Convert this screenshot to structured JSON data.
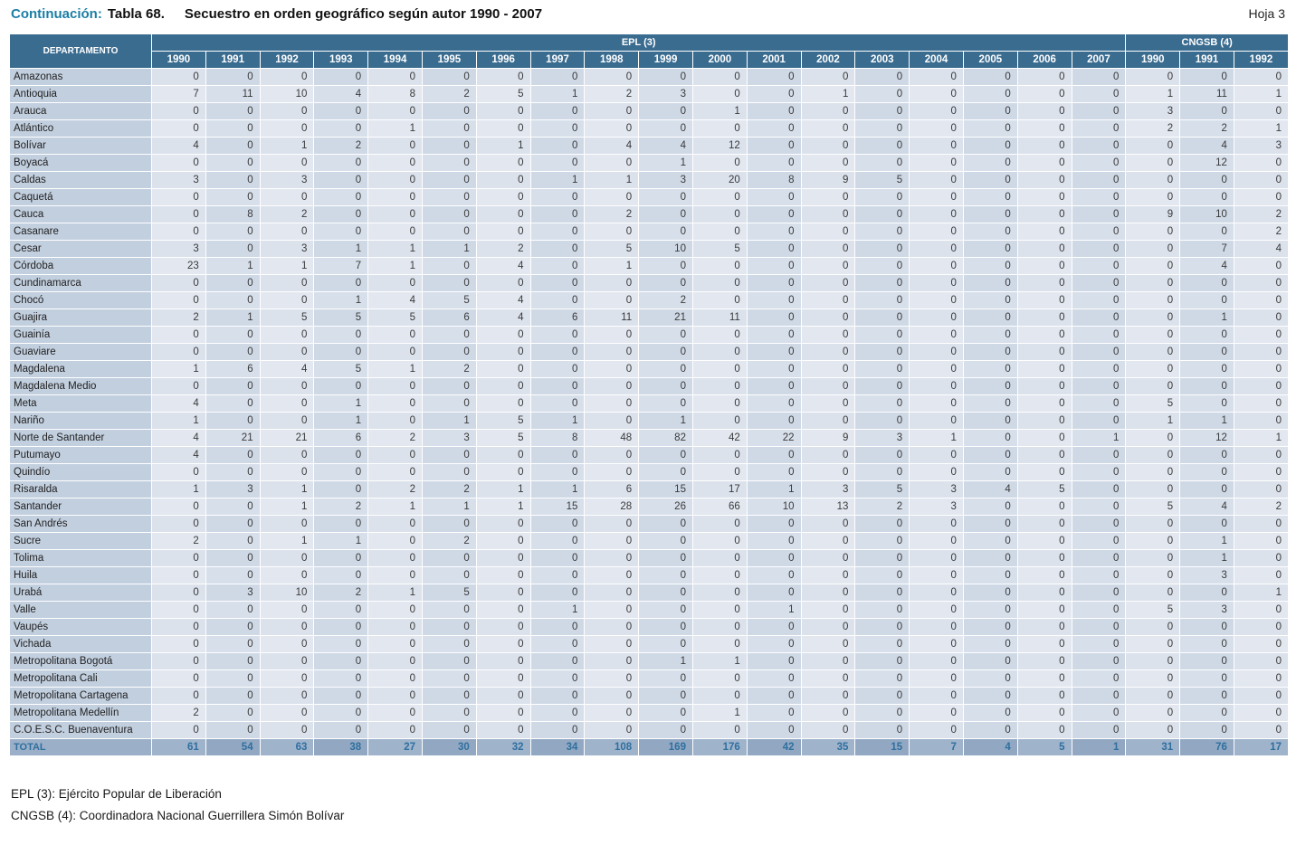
{
  "header": {
    "continuation_label": "Continuación:",
    "table_label": "Tabla 68.",
    "title": "Secuestro en orden geográfico según autor 1990 - 2007",
    "sheet_label": "Hoja 3"
  },
  "table": {
    "dept_header": "DEPARTAMENTO",
    "groups": [
      {
        "label": "EPL (3)",
        "years": [
          "1990",
          "1991",
          "1992",
          "1993",
          "1994",
          "1995",
          "1996",
          "1997",
          "1998",
          "1999",
          "2000",
          "2001",
          "2002",
          "2003",
          "2004",
          "2005",
          "2006",
          "2007"
        ]
      },
      {
        "label": "CNGSB (4)",
        "years": [
          "1990",
          "1991",
          "1992"
        ]
      }
    ],
    "rows": [
      {
        "dept": "Amazonas",
        "values": [
          0,
          0,
          0,
          0,
          0,
          0,
          0,
          0,
          0,
          0,
          0,
          0,
          0,
          0,
          0,
          0,
          0,
          0,
          0,
          0,
          0
        ]
      },
      {
        "dept": "Antioquia",
        "values": [
          7,
          11,
          10,
          4,
          8,
          2,
          5,
          1,
          2,
          3,
          0,
          0,
          1,
          0,
          0,
          0,
          0,
          0,
          1,
          11,
          1
        ]
      },
      {
        "dept": "Arauca",
        "values": [
          0,
          0,
          0,
          0,
          0,
          0,
          0,
          0,
          0,
          0,
          1,
          0,
          0,
          0,
          0,
          0,
          0,
          0,
          3,
          0,
          0
        ]
      },
      {
        "dept": "Atlántico",
        "values": [
          0,
          0,
          0,
          0,
          1,
          0,
          0,
          0,
          0,
          0,
          0,
          0,
          0,
          0,
          0,
          0,
          0,
          0,
          2,
          2,
          1
        ]
      },
      {
        "dept": "Bolívar",
        "values": [
          4,
          0,
          1,
          2,
          0,
          0,
          1,
          0,
          4,
          4,
          12,
          0,
          0,
          0,
          0,
          0,
          0,
          0,
          0,
          4,
          3
        ]
      },
      {
        "dept": "Boyacá",
        "values": [
          0,
          0,
          0,
          0,
          0,
          0,
          0,
          0,
          0,
          1,
          0,
          0,
          0,
          0,
          0,
          0,
          0,
          0,
          0,
          12,
          0
        ]
      },
      {
        "dept": "Caldas",
        "values": [
          3,
          0,
          3,
          0,
          0,
          0,
          0,
          1,
          1,
          3,
          20,
          8,
          9,
          5,
          0,
          0,
          0,
          0,
          0,
          0,
          0
        ]
      },
      {
        "dept": "Caquetá",
        "values": [
          0,
          0,
          0,
          0,
          0,
          0,
          0,
          0,
          0,
          0,
          0,
          0,
          0,
          0,
          0,
          0,
          0,
          0,
          0,
          0,
          0
        ]
      },
      {
        "dept": "Cauca",
        "values": [
          0,
          8,
          2,
          0,
          0,
          0,
          0,
          0,
          2,
          0,
          0,
          0,
          0,
          0,
          0,
          0,
          0,
          0,
          9,
          10,
          2
        ]
      },
      {
        "dept": "Casanare",
        "values": [
          0,
          0,
          0,
          0,
          0,
          0,
          0,
          0,
          0,
          0,
          0,
          0,
          0,
          0,
          0,
          0,
          0,
          0,
          0,
          0,
          2
        ]
      },
      {
        "dept": "Cesar",
        "values": [
          3,
          0,
          3,
          1,
          1,
          1,
          2,
          0,
          5,
          10,
          5,
          0,
          0,
          0,
          0,
          0,
          0,
          0,
          0,
          7,
          4
        ]
      },
      {
        "dept": "Córdoba",
        "values": [
          23,
          1,
          1,
          7,
          1,
          0,
          4,
          0,
          1,
          0,
          0,
          0,
          0,
          0,
          0,
          0,
          0,
          0,
          0,
          4,
          0
        ]
      },
      {
        "dept": "Cundinamarca",
        "values": [
          0,
          0,
          0,
          0,
          0,
          0,
          0,
          0,
          0,
          0,
          0,
          0,
          0,
          0,
          0,
          0,
          0,
          0,
          0,
          0,
          0
        ]
      },
      {
        "dept": "Chocó",
        "values": [
          0,
          0,
          0,
          1,
          4,
          5,
          4,
          0,
          0,
          2,
          0,
          0,
          0,
          0,
          0,
          0,
          0,
          0,
          0,
          0,
          0
        ]
      },
      {
        "dept": "Guajira",
        "values": [
          2,
          1,
          5,
          5,
          5,
          6,
          4,
          6,
          11,
          21,
          11,
          0,
          0,
          0,
          0,
          0,
          0,
          0,
          0,
          1,
          0
        ]
      },
      {
        "dept": "Guainía",
        "values": [
          0,
          0,
          0,
          0,
          0,
          0,
          0,
          0,
          0,
          0,
          0,
          0,
          0,
          0,
          0,
          0,
          0,
          0,
          0,
          0,
          0
        ]
      },
      {
        "dept": "Guaviare",
        "values": [
          0,
          0,
          0,
          0,
          0,
          0,
          0,
          0,
          0,
          0,
          0,
          0,
          0,
          0,
          0,
          0,
          0,
          0,
          0,
          0,
          0
        ]
      },
      {
        "dept": "Magdalena",
        "values": [
          1,
          6,
          4,
          5,
          1,
          2,
          0,
          0,
          0,
          0,
          0,
          0,
          0,
          0,
          0,
          0,
          0,
          0,
          0,
          0,
          0
        ]
      },
      {
        "dept": "Magdalena Medio",
        "values": [
          0,
          0,
          0,
          0,
          0,
          0,
          0,
          0,
          0,
          0,
          0,
          0,
          0,
          0,
          0,
          0,
          0,
          0,
          0,
          0,
          0
        ]
      },
      {
        "dept": "Meta",
        "values": [
          4,
          0,
          0,
          1,
          0,
          0,
          0,
          0,
          0,
          0,
          0,
          0,
          0,
          0,
          0,
          0,
          0,
          0,
          5,
          0,
          0
        ]
      },
      {
        "dept": "Nariño",
        "values": [
          1,
          0,
          0,
          1,
          0,
          1,
          5,
          1,
          0,
          1,
          0,
          0,
          0,
          0,
          0,
          0,
          0,
          0,
          1,
          1,
          0
        ]
      },
      {
        "dept": "Norte de Santander",
        "values": [
          4,
          21,
          21,
          6,
          2,
          3,
          5,
          8,
          48,
          82,
          42,
          22,
          9,
          3,
          1,
          0,
          0,
          1,
          0,
          12,
          1
        ]
      },
      {
        "dept": "Putumayo",
        "values": [
          4,
          0,
          0,
          0,
          0,
          0,
          0,
          0,
          0,
          0,
          0,
          0,
          0,
          0,
          0,
          0,
          0,
          0,
          0,
          0,
          0
        ]
      },
      {
        "dept": "Quindío",
        "values": [
          0,
          0,
          0,
          0,
          0,
          0,
          0,
          0,
          0,
          0,
          0,
          0,
          0,
          0,
          0,
          0,
          0,
          0,
          0,
          0,
          0
        ]
      },
      {
        "dept": "Risaralda",
        "values": [
          1,
          3,
          1,
          0,
          2,
          2,
          1,
          1,
          6,
          15,
          17,
          1,
          3,
          5,
          3,
          4,
          5,
          0,
          0,
          0,
          0
        ]
      },
      {
        "dept": "Santander",
        "values": [
          0,
          0,
          1,
          2,
          1,
          1,
          1,
          15,
          28,
          26,
          66,
          10,
          13,
          2,
          3,
          0,
          0,
          0,
          5,
          4,
          2
        ]
      },
      {
        "dept": "San Andrés",
        "values": [
          0,
          0,
          0,
          0,
          0,
          0,
          0,
          0,
          0,
          0,
          0,
          0,
          0,
          0,
          0,
          0,
          0,
          0,
          0,
          0,
          0
        ]
      },
      {
        "dept": "Sucre",
        "values": [
          2,
          0,
          1,
          1,
          0,
          2,
          0,
          0,
          0,
          0,
          0,
          0,
          0,
          0,
          0,
          0,
          0,
          0,
          0,
          1,
          0
        ]
      },
      {
        "dept": "Tolima",
        "values": [
          0,
          0,
          0,
          0,
          0,
          0,
          0,
          0,
          0,
          0,
          0,
          0,
          0,
          0,
          0,
          0,
          0,
          0,
          0,
          1,
          0
        ]
      },
      {
        "dept": "Huila",
        "values": [
          0,
          0,
          0,
          0,
          0,
          0,
          0,
          0,
          0,
          0,
          0,
          0,
          0,
          0,
          0,
          0,
          0,
          0,
          0,
          3,
          0
        ]
      },
      {
        "dept": "Urabá",
        "values": [
          0,
          3,
          10,
          2,
          1,
          5,
          0,
          0,
          0,
          0,
          0,
          0,
          0,
          0,
          0,
          0,
          0,
          0,
          0,
          0,
          1
        ]
      },
      {
        "dept": "Valle",
        "values": [
          0,
          0,
          0,
          0,
          0,
          0,
          0,
          1,
          0,
          0,
          0,
          1,
          0,
          0,
          0,
          0,
          0,
          0,
          5,
          3,
          0
        ]
      },
      {
        "dept": "Vaupés",
        "values": [
          0,
          0,
          0,
          0,
          0,
          0,
          0,
          0,
          0,
          0,
          0,
          0,
          0,
          0,
          0,
          0,
          0,
          0,
          0,
          0,
          0
        ]
      },
      {
        "dept": "Vichada",
        "values": [
          0,
          0,
          0,
          0,
          0,
          0,
          0,
          0,
          0,
          0,
          0,
          0,
          0,
          0,
          0,
          0,
          0,
          0,
          0,
          0,
          0
        ]
      },
      {
        "dept": "Metropolitana Bogotá",
        "values": [
          0,
          0,
          0,
          0,
          0,
          0,
          0,
          0,
          0,
          1,
          1,
          0,
          0,
          0,
          0,
          0,
          0,
          0,
          0,
          0,
          0
        ]
      },
      {
        "dept": "Metropolitana Cali",
        "values": [
          0,
          0,
          0,
          0,
          0,
          0,
          0,
          0,
          0,
          0,
          0,
          0,
          0,
          0,
          0,
          0,
          0,
          0,
          0,
          0,
          0
        ]
      },
      {
        "dept": "Metropolitana Cartagena",
        "values": [
          0,
          0,
          0,
          0,
          0,
          0,
          0,
          0,
          0,
          0,
          0,
          0,
          0,
          0,
          0,
          0,
          0,
          0,
          0,
          0,
          0
        ]
      },
      {
        "dept": "Metropolitana Medellín",
        "values": [
          2,
          0,
          0,
          0,
          0,
          0,
          0,
          0,
          0,
          0,
          1,
          0,
          0,
          0,
          0,
          0,
          0,
          0,
          0,
          0,
          0
        ]
      },
      {
        "dept": "C.O.E.S.C. Buenaventura",
        "values": [
          0,
          0,
          0,
          0,
          0,
          0,
          0,
          0,
          0,
          0,
          0,
          0,
          0,
          0,
          0,
          0,
          0,
          0,
          0,
          0,
          0
        ]
      }
    ],
    "total": {
      "label": "TOTAL",
      "values": [
        61,
        54,
        63,
        38,
        27,
        30,
        32,
        34,
        108,
        169,
        176,
        42,
        35,
        15,
        7,
        4,
        5,
        1,
        31,
        76,
        17
      ]
    }
  },
  "footnotes": [
    "EPL (3): Ejército Popular de Liberación",
    "CNGSB (4): Coordinadora Nacional Guerrillera Simón Bolívar"
  ],
  "colors": {
    "header_bg": "#3a6c90",
    "dept_cell_bg": "#c2cfdf",
    "total_row_bg": "#9bb0c8",
    "accent_teal": "#1b7ea6",
    "total_text": "#2f6f9f"
  }
}
